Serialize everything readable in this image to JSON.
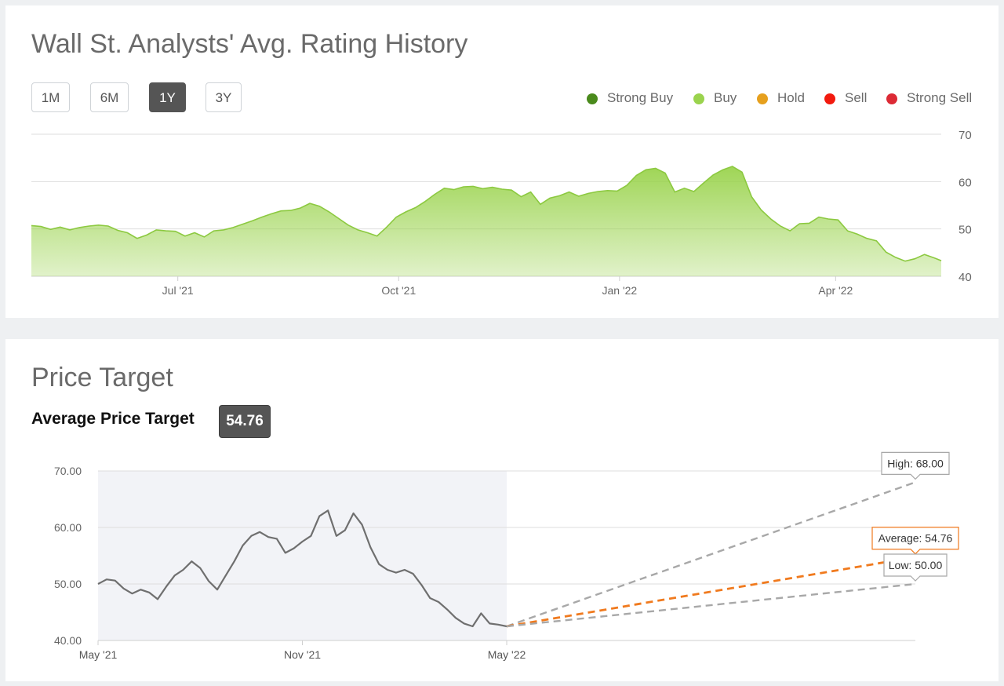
{
  "rating_card": {
    "title": "Wall St. Analysts' Avg. Rating History",
    "ranges": [
      {
        "label": "1M",
        "active": false
      },
      {
        "label": "6M",
        "active": false
      },
      {
        "label": "1Y",
        "active": true
      },
      {
        "label": "3Y",
        "active": false
      }
    ],
    "legend": [
      {
        "label": "Strong Buy",
        "color": "#4a8a1c"
      },
      {
        "label": "Buy",
        "color": "#9ad34d"
      },
      {
        "label": "Hold",
        "color": "#e6a01e"
      },
      {
        "label": "Sell",
        "color": "#f21a0e"
      },
      {
        "label": "Strong Sell",
        "color": "#dc2a35"
      }
    ]
  },
  "target_card": {
    "title": "Price Target",
    "avg_label": "Average Price Target",
    "avg_value": "54.76"
  },
  "chart_data": [
    {
      "type": "area",
      "title": "Wall St. Analysts' Avg. Rating History",
      "color": "#9ad34d",
      "ylim": [
        40,
        70
      ],
      "y_ticks": [
        "40",
        "50",
        "60",
        "70"
      ],
      "x_ticks": [
        {
          "label": "Jul '21",
          "x": 61
        },
        {
          "label": "Oct '21",
          "x": 153
        },
        {
          "label": "Jan '22",
          "x": 245
        },
        {
          "label": "Apr '22",
          "x": 335
        }
      ],
      "x_range": [
        0,
        379
      ],
      "grid": true,
      "x": [
        0,
        4,
        8,
        12,
        16,
        20,
        24,
        28,
        32,
        36,
        40,
        44,
        48,
        52,
        56,
        60,
        64,
        68,
        72,
        76,
        80,
        84,
        88,
        92,
        96,
        100,
        104,
        108,
        112,
        116,
        120,
        124,
        128,
        132,
        136,
        140,
        144,
        148,
        152,
        156,
        160,
        164,
        168,
        172,
        176,
        180,
        184,
        188,
        192,
        196,
        200,
        204,
        208,
        212,
        216,
        220,
        224,
        228,
        232,
        236,
        240,
        244,
        248,
        252,
        256,
        260,
        262,
        264,
        268,
        272,
        276,
        280,
        284,
        288,
        292,
        296,
        300,
        304,
        308,
        312,
        316,
        320,
        324,
        328,
        332,
        336,
        340,
        344,
        348,
        352,
        356,
        360,
        364,
        368,
        372,
        376,
        379
      ],
      "y": [
        50.7,
        50.5,
        49.9,
        50.4,
        49.8,
        50.3,
        50.6,
        50.8,
        50.6,
        49.7,
        49.2,
        48.0,
        48.7,
        49.8,
        49.6,
        49.5,
        48.5,
        49.2,
        48.3,
        49.6,
        49.8,
        50.3,
        51.0,
        51.7,
        52.5,
        53.2,
        53.8,
        53.9,
        54.4,
        55.4,
        54.8,
        53.6,
        52.2,
        50.8,
        49.8,
        49.2,
        48.5,
        50.4,
        52.5,
        53.6,
        54.5,
        55.8,
        57.3,
        58.6,
        58.3,
        58.9,
        59.0,
        58.5,
        58.8,
        58.4,
        58.2,
        56.8,
        57.8,
        55.2,
        56.5,
        57.0,
        57.8,
        56.9,
        57.5,
        57.9,
        58.1,
        58.0,
        59.2,
        61.3,
        62.5,
        62.8,
        62.3,
        61.8,
        57.8,
        58.6,
        57.9,
        59.7,
        61.4,
        62.5,
        63.2,
        62.0,
        56.8,
        54.0,
        52.1,
        50.6,
        49.6,
        51.1,
        51.2,
        52.5,
        52.1,
        51.9,
        49.6,
        48.9,
        48.0,
        47.5,
        45.1,
        44.0,
        43.2,
        43.7,
        44.6,
        43.9,
        43.3
      ]
    },
    {
      "type": "line",
      "title": "Price Target",
      "ylim": [
        40,
        70
      ],
      "y_ticks": [
        "40.00",
        "50.00",
        "60.00",
        "70.00"
      ],
      "x_ticks": [
        {
          "label": "May '21",
          "x": 0
        },
        {
          "label": "Nov '21",
          "x": 6
        },
        {
          "label": "May '22",
          "x": 12
        }
      ],
      "x_range": [
        0,
        24
      ],
      "grid": true,
      "series": [
        {
          "color": "#6f6f6f",
          "x": [
            0,
            0.25,
            0.5,
            0.75,
            1,
            1.25,
            1.5,
            1.75,
            2,
            2.25,
            2.5,
            2.75,
            3,
            3.25,
            3.5,
            3.75,
            4,
            4.25,
            4.5,
            4.75,
            5,
            5.25,
            5.5,
            5.75,
            6,
            6.25,
            6.5,
            6.75,
            7,
            7.25,
            7.5,
            7.75,
            8,
            8.25,
            8.5,
            8.75,
            9,
            9.25,
            9.5,
            9.75,
            10,
            10.25,
            10.5,
            10.75,
            11,
            11.25,
            11.5,
            11.75,
            12
          ],
          "y": [
            50.0,
            50.8,
            50.6,
            49.2,
            48.3,
            49.0,
            48.5,
            47.3,
            49.5,
            51.5,
            52.5,
            54.0,
            52.8,
            50.5,
            49.0,
            51.5,
            54.0,
            56.8,
            58.5,
            59.2,
            58.3,
            58.0,
            55.5,
            56.3,
            57.5,
            58.5,
            62.0,
            63.0,
            58.5,
            59.5,
            62.5,
            60.5,
            56.5,
            53.5,
            52.5,
            52.0,
            52.5,
            51.8,
            49.8,
            47.5,
            46.8,
            45.5,
            44.0,
            43.0,
            42.5,
            44.8,
            43.0,
            42.8,
            42.5
          ]
        }
      ],
      "targets": [
        {
          "label": "High: 68.00",
          "value": 68.0,
          "color": "#a8a8a8"
        },
        {
          "label": "Average: 54.76",
          "value": 54.76,
          "color": "#f07a1e"
        },
        {
          "label": "Low: 50.00",
          "value": 50.0,
          "color": "#a8a8a8"
        }
      ],
      "target_x": 24
    }
  ]
}
